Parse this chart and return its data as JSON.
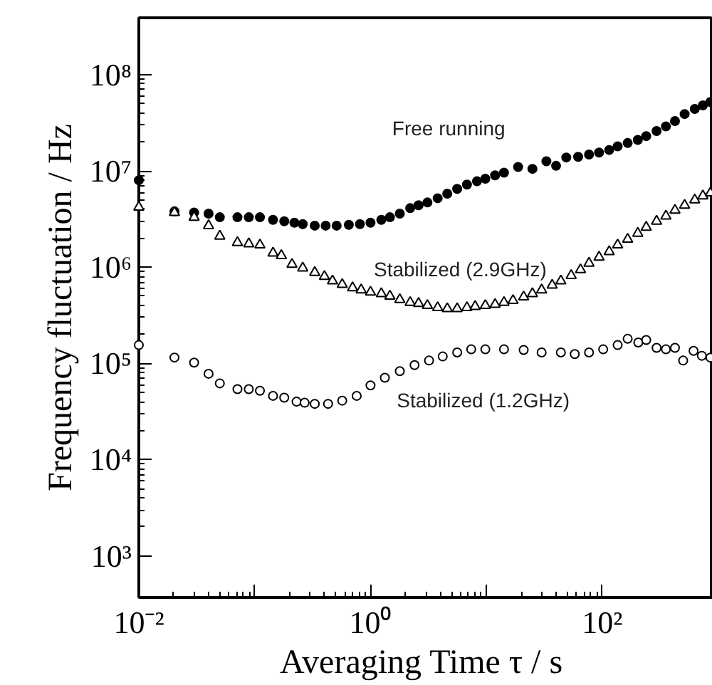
{
  "chart_data": {
    "type": "scatter",
    "xlabel": "Averaging Time  τ / s",
    "ylabel": "Frequency fluctuation / Hz",
    "log": "xy",
    "xlim": [
      0.01,
      900
    ],
    "ylim": [
      370,
      390000000
    ],
    "xticks": [
      {
        "value": 0.01,
        "label": "10⁻²"
      },
      {
        "value": 0.1,
        "label": null
      },
      {
        "value": 1,
        "label": "10⁰"
      },
      {
        "value": 10,
        "label": null
      },
      {
        "value": 100,
        "label": "10²"
      }
    ],
    "yticks": [
      {
        "value": 1000,
        "label": "10³"
      },
      {
        "value": 10000,
        "label": "10⁴"
      },
      {
        "value": 100000,
        "label": "10⁵"
      },
      {
        "value": 1000000,
        "label": "10⁶"
      },
      {
        "value": 10000000,
        "label": "10⁷"
      },
      {
        "value": 100000000,
        "label": "10⁸"
      }
    ],
    "grid": false,
    "series": [
      {
        "name": "Free running",
        "color": "#000000",
        "marker": "circle",
        "x": [
          0.01,
          0.0203,
          0.03,
          0.04,
          0.05,
          0.071,
          0.089,
          0.111,
          0.144,
          0.18,
          0.22,
          0.26,
          0.33,
          0.41,
          0.51,
          0.65,
          0.81,
          1.0,
          1.24,
          1.47,
          1.79,
          2.2,
          2.6,
          3.1,
          3.8,
          4.6,
          5.6,
          6.8,
          8.3,
          9.8,
          11.9,
          14.2,
          18.8,
          25,
          33,
          40,
          49,
          62,
          77,
          94,
          115,
          136,
          166,
          203,
          240,
          295,
          355,
          425,
          515,
          630,
          740,
          860
        ],
        "values": [
          8000000,
          3800000,
          3700000,
          3600000,
          3300000,
          3300000,
          3300000,
          3300000,
          3100000,
          3000000,
          2900000,
          2800000,
          2700000,
          2700000,
          2700000,
          2750000,
          2800000,
          2900000,
          3100000,
          3300000,
          3600000,
          4100000,
          4400000,
          4700000,
          5200000,
          5800000,
          6500000,
          7200000,
          7800000,
          8300000,
          9000000,
          9600000,
          11000000,
          10500000,
          12600000,
          11300000,
          13800000,
          14000000,
          14800000,
          15500000,
          16500000,
          18000000,
          19500000,
          21000000,
          23000000,
          26000000,
          29000000,
          33000000,
          39000000,
          44000000,
          48000000,
          52000000
        ]
      },
      {
        "name": "Stabilized (2.9GHz)",
        "color": "#000000",
        "marker": "triangle",
        "x": [
          0.01,
          0.0203,
          0.03,
          0.04,
          0.05,
          0.071,
          0.089,
          0.111,
          0.144,
          0.17,
          0.21,
          0.26,
          0.33,
          0.4,
          0.47,
          0.57,
          0.7,
          0.83,
          1.0,
          1.24,
          1.47,
          1.79,
          2.2,
          2.6,
          3.1,
          3.8,
          4.6,
          5.6,
          6.8,
          8.0,
          9.8,
          11.9,
          14.2,
          17,
          21,
          25,
          30,
          37,
          44,
          54,
          65,
          77,
          94,
          115,
          136,
          166,
          203,
          240,
          295,
          355,
          425,
          515,
          630,
          740,
          860
        ],
        "values": [
          4200000,
          3700000,
          3300000,
          2700000,
          2100000,
          1800000,
          1750000,
          1700000,
          1400000,
          1320000,
          1070000,
          980000,
          880000,
          800000,
          720000,
          660000,
          610000,
          580000,
          550000,
          530000,
          500000,
          460000,
          430000,
          420000,
          400000,
          380000,
          370000,
          370000,
          380000,
          390000,
          400000,
          410000,
          430000,
          450000,
          490000,
          530000,
          580000,
          650000,
          720000,
          820000,
          940000,
          1100000,
          1270000,
          1450000,
          1700000,
          1950000,
          2250000,
          2600000,
          3000000,
          3400000,
          3900000,
          4400000,
          5000000,
          5500000,
          5900000
        ]
      },
      {
        "name": "Stabilized (1.2GHz)",
        "color": "#000000",
        "marker": "circle",
        "x": [
          0.01,
          0.0203,
          0.03,
          0.04,
          0.05,
          0.071,
          0.089,
          0.111,
          0.144,
          0.18,
          0.23,
          0.27,
          0.33,
          0.43,
          0.57,
          0.76,
          1.0,
          1.33,
          1.79,
          2.4,
          3.2,
          4.2,
          5.6,
          7.4,
          9.8,
          14.2,
          21,
          30,
          44,
          58,
          77,
          102,
          136,
          166,
          205,
          240,
          295,
          355,
          425,
          500,
          615,
          725,
          860
        ],
        "values": [
          155000,
          115000,
          102000,
          78000,
          62000,
          54000,
          54000,
          52000,
          46000,
          44000,
          40000,
          39000,
          38000,
          38000,
          41000,
          46000,
          59000,
          71000,
          83000,
          96000,
          107000,
          118000,
          130000,
          140000,
          140000,
          140000,
          138000,
          130000,
          130000,
          125000,
          130000,
          140000,
          155000,
          180000,
          165000,
          175000,
          145000,
          140000,
          145000,
          107000,
          135000,
          120000,
          115000
        ]
      }
    ]
  }
}
